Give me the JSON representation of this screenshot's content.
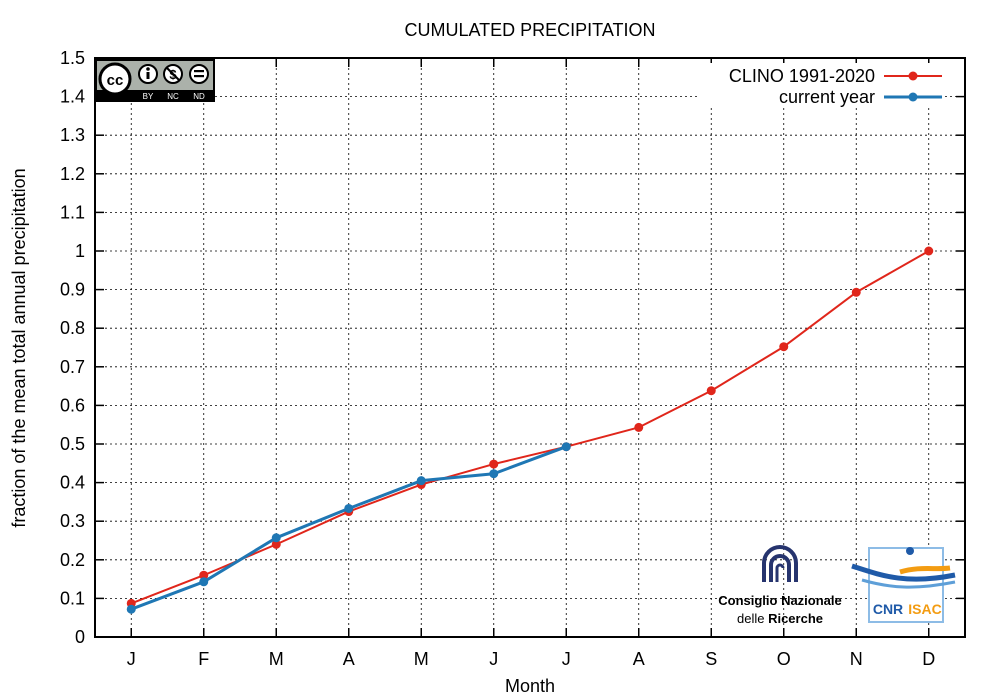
{
  "chart_data": {
    "type": "line",
    "title": "CUMULATED PRECIPITATION",
    "xlabel": "Month",
    "ylabel": "fraction of the mean total annual precipitation",
    "categories": [
      "J",
      "F",
      "M",
      "A",
      "M",
      "J",
      "J",
      "A",
      "S",
      "O",
      "N",
      "D"
    ],
    "ylim": [
      0,
      1.5
    ],
    "yticks": [
      "0",
      "0.1",
      "0.2",
      "0.3",
      "0.4",
      "0.5",
      "0.6",
      "0.7",
      "0.8",
      "0.9",
      "1",
      "1.1",
      "1.2",
      "1.3",
      "1.4",
      "1.5"
    ],
    "grid": true,
    "legend_position": "top-right",
    "series": [
      {
        "name": "CLINO 1991-2020",
        "color": "#e0261b",
        "values": [
          0.087,
          0.16,
          0.24,
          0.325,
          0.395,
          0.448,
          0.493,
          0.543,
          0.638,
          0.752,
          0.893,
          1.0
        ]
      },
      {
        "name": "current year",
        "color": "#1f77b4",
        "values": [
          0.072,
          0.143,
          0.257,
          0.333,
          0.405,
          0.423,
          0.493,
          null,
          null,
          null,
          null,
          null
        ]
      }
    ]
  },
  "license_badge": {
    "icon": "cc-by-nc-nd-icon",
    "labels": [
      "BY",
      "NC",
      "ND"
    ]
  },
  "logos": {
    "cnr": {
      "line1": "Consiglio Nazionale",
      "line2_prefix": "delle ",
      "line2_bold": "Ricerche"
    },
    "isac": {
      "left": "CNR",
      "right": "ISAC"
    }
  }
}
